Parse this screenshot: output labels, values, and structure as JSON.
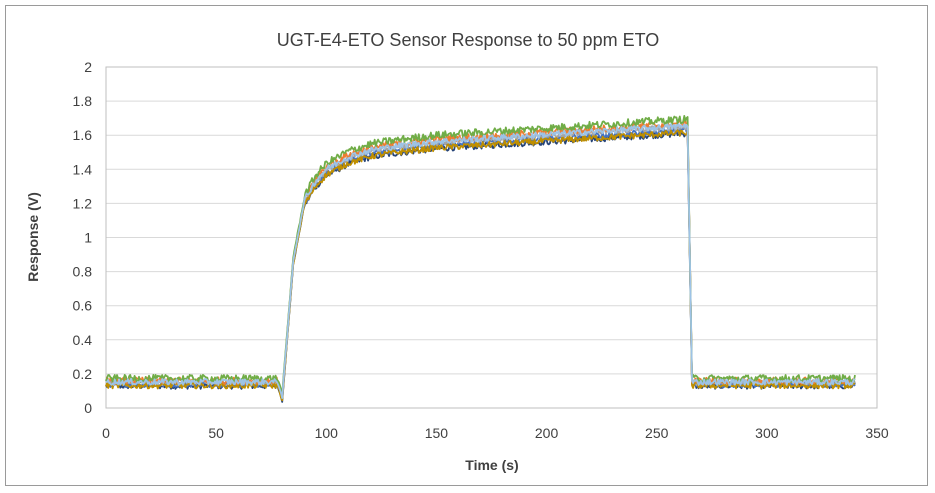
{
  "chart_data": {
    "type": "line",
    "title": "UGT-E4-ETO Sensor Response to 50 ppm ETO",
    "xlabel": "Time (s)",
    "ylabel": "Response (V)",
    "xlim": [
      0,
      350
    ],
    "ylim": [
      0,
      2
    ],
    "x_ticks": [
      "0",
      "50",
      "100",
      "150",
      "200",
      "250",
      "300",
      "350"
    ],
    "y_ticks": [
      "0",
      "0.2",
      "0.4",
      "0.6",
      "0.8",
      "1",
      "1.2",
      "1.4",
      "1.6",
      "1.8",
      "2"
    ],
    "grid": "horizontal",
    "legend": "none",
    "profile": {
      "baseline_end_s": 78,
      "step_off_s": 265,
      "end_s": 340,
      "x": [
        0,
        78,
        80,
        85,
        90,
        95,
        100,
        110,
        120,
        130,
        150,
        175,
        200,
        225,
        250,
        264,
        265,
        266,
        300,
        340
      ],
      "y": [
        0.14,
        0.14,
        0.05,
        0.85,
        1.2,
        1.31,
        1.38,
        1.45,
        1.49,
        1.51,
        1.54,
        1.56,
        1.58,
        1.6,
        1.62,
        1.63,
        0.9,
        0.14,
        0.14,
        0.14
      ]
    },
    "series": [
      {
        "color": "#264478",
        "offset": -0.02,
        "noise": 0.018
      },
      {
        "color": "#4472c4",
        "offset": 0.0,
        "noise": 0.018
      },
      {
        "color": "#a5a5a5",
        "offset": 0.02,
        "noise": 0.018
      },
      {
        "color": "#bf8f00",
        "offset": -0.015,
        "noise": 0.018
      },
      {
        "color": "#ed7d31",
        "offset": 0.04,
        "noise": 0.02
      },
      {
        "color": "#70ad47",
        "offset": 0.065,
        "noise": 0.022
      },
      {
        "color": "#9dc3e6",
        "offset": 0.025,
        "noise": 0.018
      }
    ]
  }
}
